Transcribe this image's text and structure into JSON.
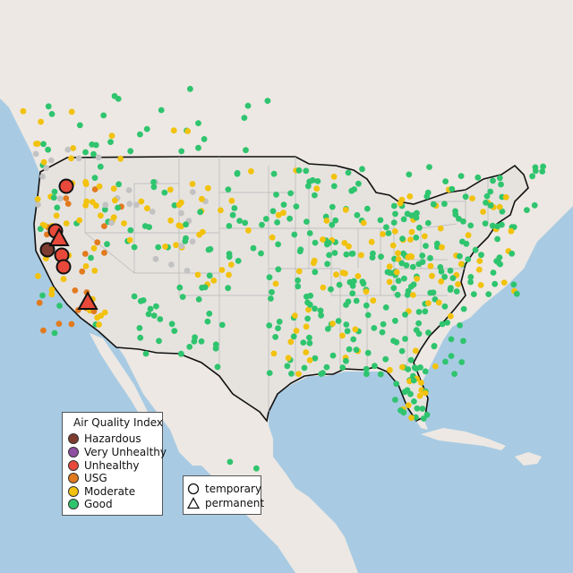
{
  "legend": {
    "title": "Air Quality Index",
    "categories": [
      {
        "label": "Hazardous",
        "color": "#7e3b2f"
      },
      {
        "label": "Very Unhealthy",
        "color": "#8f4fa0"
      },
      {
        "label": "Unhealthy",
        "color": "#e8493a"
      },
      {
        "label": "USG",
        "color": "#e27a1e"
      },
      {
        "label": "Moderate",
        "color": "#f2c20d"
      },
      {
        "label": "Good",
        "color": "#2fc46e"
      }
    ]
  },
  "shape_legend": {
    "temporary": "temporary",
    "permanent": "permanent"
  },
  "colors": {
    "ocean": "#a8cbe3",
    "land": "#ede8e3",
    "us_land": "#e6e3df",
    "border": "#111111",
    "state_lines": "#b6b6b6",
    "missing": "#c2c2c2"
  }
}
